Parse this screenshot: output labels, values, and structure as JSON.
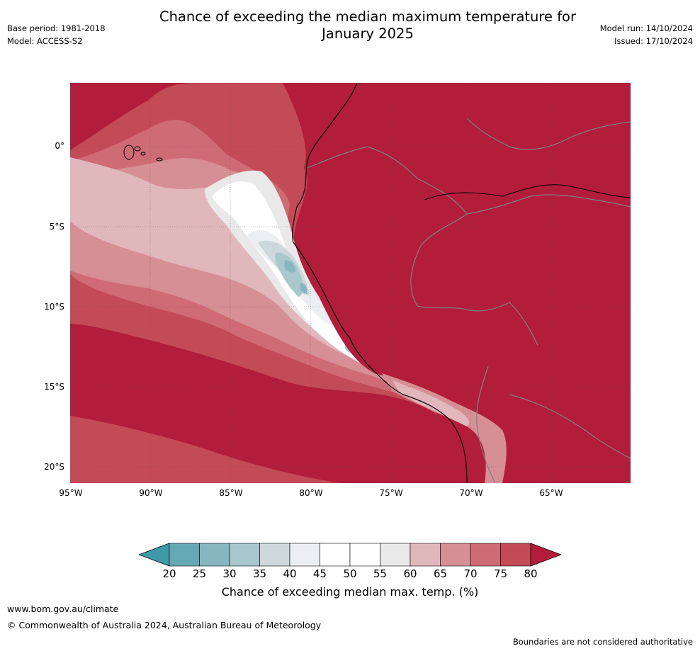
{
  "header": {
    "title_line1": "Chance of exceeding the median maximum temperature for",
    "title_line2": "January 2025",
    "base_period": "Base period: 1981-2018",
    "model": "Model: ACCESS-S2",
    "model_run": "Model run: 14/10/2024",
    "issued": "Issued: 17/10/2024"
  },
  "map": {
    "lat_labels": [
      "0°",
      "5°S",
      "10°S",
      "15°S",
      "20°S"
    ],
    "lon_labels": [
      "95°W",
      "90°W",
      "85°W",
      "80°W",
      "75°W",
      "70°W",
      "65°W"
    ],
    "dominant_category": "80+",
    "colors": {
      "c80": "#b11d3a",
      "c75": "#c34a57",
      "c70": "#cf6b75",
      "c65": "#d78f96",
      "c60": "#e0b8bc",
      "c55": "#e9e9ea",
      "c50": "#ffffff",
      "c45": "#eceff1",
      "c40": "#ccd8db",
      "c35": "#a9c8ce",
      "c30": "#86b7c0",
      "c25": "#64a9b4",
      "c20": "#3f9aa8"
    }
  },
  "colorbar": {
    "label": "Chance of exceeding median max. temp. (%)",
    "ticks": [
      "20",
      "25",
      "30",
      "35",
      "40",
      "45",
      "50",
      "55",
      "60",
      "65",
      "70",
      "75",
      "80"
    ],
    "colors": [
      "#64a9b4",
      "#86b7c0",
      "#a9c8ce",
      "#ccd8db",
      "#eceff1",
      "#ffffff",
      "#ffffff",
      "#e9e9ea",
      "#e0b8bc",
      "#d78f96",
      "#cf6b75",
      "#c34a57"
    ],
    "low_extend_color": "#3f9aa8",
    "high_extend_color": "#b11d3a"
  },
  "footer": {
    "url": "www.bom.gov.au/climate",
    "copyright": "© Commonwealth of Australia 2024, Australian Bureau of Meteorology",
    "disclaimer": "Boundaries are not considered authoritative"
  }
}
